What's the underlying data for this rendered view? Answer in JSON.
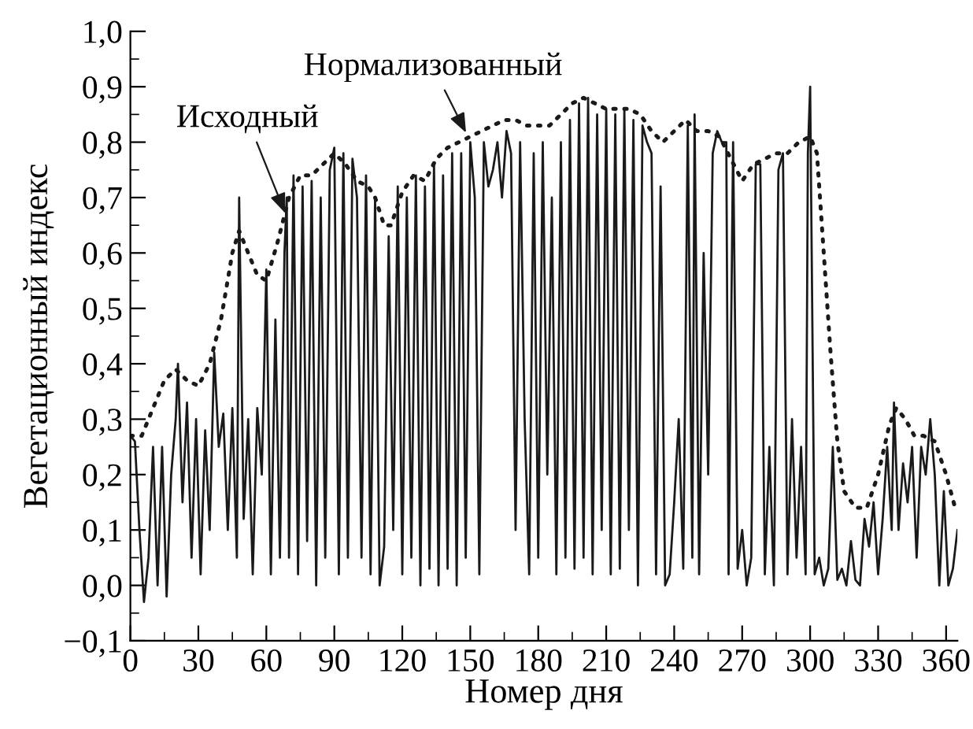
{
  "chart_data": {
    "type": "line",
    "xlabel": "Номер дня",
    "ylabel": "Вегетационный индекс",
    "xlim": [
      0,
      365
    ],
    "xticks": [
      0,
      30,
      60,
      90,
      120,
      150,
      180,
      210,
      240,
      270,
      300,
      330,
      360
    ],
    "ylim": [
      -0.1,
      1.0
    ],
    "yticks": [
      {
        "value": -0.1,
        "label": "−0,1"
      },
      {
        "value": 0.0,
        "label": "0,0"
      },
      {
        "value": 0.1,
        "label": "0,1"
      },
      {
        "value": 0.2,
        "label": "0,2"
      },
      {
        "value": 0.3,
        "label": "0,3"
      },
      {
        "value": 0.4,
        "label": "0,4"
      },
      {
        "value": 0.5,
        "label": "0,5"
      },
      {
        "value": 0.6,
        "label": "0,6"
      },
      {
        "value": 0.7,
        "label": "0,7"
      },
      {
        "value": 0.8,
        "label": "0,8"
      },
      {
        "value": 0.9,
        "label": "0,9"
      },
      {
        "value": 1.0,
        "label": "1,0"
      }
    ],
    "grid": false,
    "marker": "none",
    "series": [
      {
        "color": "#1a1a1a",
        "line_style": "solid",
        "x": [
          0,
          2,
          4,
          6,
          8,
          10,
          12,
          14,
          16,
          18,
          20,
          21,
          23,
          25,
          27,
          29,
          31,
          33,
          35,
          37,
          39,
          41,
          43,
          45,
          47,
          48,
          50,
          52,
          54,
          56,
          58,
          60,
          62,
          64,
          66,
          68,
          69,
          70,
          72,
          74,
          76,
          78,
          80,
          82,
          84,
          86,
          88,
          90,
          92,
          94,
          96,
          98,
          100,
          102,
          104,
          106,
          108,
          110,
          112,
          114,
          116,
          118,
          120,
          122,
          124,
          126,
          128,
          130,
          132,
          134,
          136,
          138,
          140,
          142,
          144,
          146,
          148,
          150,
          152,
          154,
          156,
          158,
          160,
          162,
          164,
          166,
          168,
          170,
          172,
          174,
          176,
          178,
          180,
          182,
          184,
          186,
          188,
          190,
          192,
          194,
          196,
          198,
          200,
          202,
          204,
          206,
          208,
          210,
          212,
          214,
          216,
          218,
          220,
          222,
          224,
          226,
          228,
          230,
          232,
          234,
          236,
          238,
          240,
          242,
          244,
          246,
          248,
          249,
          251,
          253,
          255,
          257,
          259,
          261,
          263,
          264,
          266,
          268,
          270,
          272,
          274,
          276,
          278,
          280,
          282,
          284,
          286,
          288,
          290,
          292,
          294,
          296,
          298,
          299,
          300,
          302,
          304,
          306,
          308,
          310,
          312,
          314,
          316,
          318,
          320,
          322,
          324,
          326,
          328,
          330,
          332,
          334,
          336,
          337,
          339,
          341,
          343,
          345,
          347,
          349,
          351,
          353,
          355,
          357,
          359,
          361,
          363,
          365
        ],
        "values": [
          0.27,
          0.26,
          0.1,
          -0.03,
          0.05,
          0.25,
          0.0,
          0.25,
          -0.02,
          0.2,
          0.3,
          0.4,
          0.15,
          0.33,
          0.05,
          0.3,
          0.02,
          0.28,
          0.1,
          0.42,
          0.25,
          0.31,
          0.1,
          0.32,
          0.05,
          0.7,
          0.12,
          0.3,
          0.02,
          0.32,
          0.2,
          0.57,
          0.02,
          0.48,
          0.05,
          0.6,
          0.7,
          0.05,
          0.74,
          0.02,
          0.72,
          0.08,
          0.73,
          0.0,
          0.7,
          0.05,
          0.75,
          0.79,
          0.02,
          0.78,
          0.05,
          0.77,
          0.7,
          0.05,
          0.74,
          0.02,
          0.7,
          0.0,
          0.07,
          0.63,
          0.1,
          0.72,
          0.02,
          0.7,
          0.05,
          0.74,
          0.0,
          0.72,
          0.03,
          0.76,
          0.0,
          0.74,
          0.03,
          0.78,
          0.0,
          0.78,
          0.05,
          0.8,
          0.7,
          0.02,
          0.8,
          0.72,
          0.75,
          0.8,
          0.7,
          0.82,
          0.78,
          0.1,
          0.8,
          0.3,
          0.02,
          0.78,
          0.05,
          0.8,
          0.2,
          0.7,
          0.02,
          0.8,
          0.05,
          0.84,
          0.03,
          0.87,
          0.05,
          0.88,
          0.02,
          0.85,
          0.1,
          0.86,
          0.02,
          0.85,
          0.03,
          0.86,
          0.1,
          0.84,
          0.0,
          0.83,
          0.8,
          0.78,
          0.02,
          0.72,
          0.0,
          0.02,
          0.15,
          0.3,
          0.03,
          0.83,
          0.05,
          0.85,
          0.02,
          0.6,
          0.2,
          0.78,
          0.82,
          0.8,
          0.8,
          0.02,
          0.8,
          0.03,
          0.1,
          0.0,
          0.05,
          0.76,
          0.76,
          0.02,
          0.25,
          0.0,
          0.75,
          0.78,
          0.02,
          0.3,
          0.05,
          0.25,
          0.02,
          0.78,
          0.9,
          0.02,
          0.05,
          0.0,
          0.03,
          0.25,
          0.01,
          0.03,
          0.0,
          0.08,
          0.01,
          0.0,
          0.12,
          0.07,
          0.15,
          0.02,
          0.12,
          0.25,
          0.1,
          0.33,
          0.1,
          0.22,
          0.15,
          0.25,
          0.05,
          0.25,
          0.2,
          0.3,
          0.2,
          0.0,
          0.17,
          0.0,
          0.03,
          0.1
        ]
      },
      {
        "color": "#1a1a1a",
        "line_style": "dotted",
        "x": [
          0,
          5,
          10,
          15,
          20,
          25,
          30,
          35,
          40,
          45,
          48,
          52,
          56,
          60,
          65,
          70,
          75,
          80,
          85,
          90,
          95,
          100,
          105,
          108,
          112,
          115,
          120,
          125,
          130,
          135,
          140,
          145,
          150,
          155,
          160,
          165,
          170,
          175,
          180,
          185,
          190,
          195,
          200,
          205,
          210,
          215,
          220,
          225,
          230,
          235,
          240,
          245,
          250,
          255,
          260,
          265,
          270,
          275,
          280,
          285,
          290,
          295,
          300,
          303,
          306,
          309,
          312,
          315,
          320,
          325,
          330,
          335,
          338,
          342,
          346,
          350,
          355,
          360,
          364
        ],
        "values": [
          0.27,
          0.27,
          0.32,
          0.37,
          0.39,
          0.37,
          0.36,
          0.4,
          0.48,
          0.6,
          0.64,
          0.6,
          0.56,
          0.55,
          0.62,
          0.7,
          0.74,
          0.74,
          0.76,
          0.78,
          0.76,
          0.73,
          0.72,
          0.7,
          0.65,
          0.65,
          0.71,
          0.74,
          0.73,
          0.77,
          0.79,
          0.8,
          0.81,
          0.82,
          0.83,
          0.84,
          0.84,
          0.83,
          0.83,
          0.83,
          0.85,
          0.87,
          0.88,
          0.87,
          0.86,
          0.86,
          0.86,
          0.85,
          0.82,
          0.8,
          0.82,
          0.84,
          0.82,
          0.82,
          0.81,
          0.77,
          0.73,
          0.76,
          0.77,
          0.78,
          0.78,
          0.8,
          0.81,
          0.78,
          0.6,
          0.42,
          0.26,
          0.17,
          0.14,
          0.14,
          0.2,
          0.29,
          0.32,
          0.3,
          0.27,
          0.27,
          0.26,
          0.2,
          0.14
        ]
      }
    ],
    "annotations": [
      {
        "text": "Исходный",
        "x": 69,
        "y": 0.665
      },
      {
        "text": "Нормализованный",
        "x": 149,
        "y": 0.81
      }
    ]
  }
}
